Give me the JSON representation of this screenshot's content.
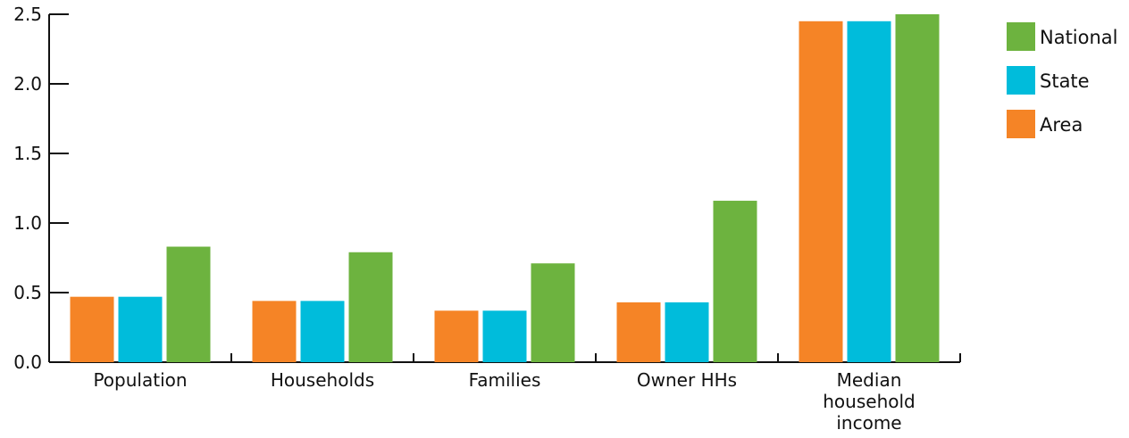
{
  "chart_data": {
    "type": "bar",
    "categories": [
      [
        "Population"
      ],
      [
        "Households"
      ],
      [
        "Families"
      ],
      [
        "Owner HHs"
      ],
      [
        "Median",
        "household",
        "income"
      ]
    ],
    "series": [
      {
        "name": "Area",
        "color": "#f58426",
        "values": [
          0.47,
          0.44,
          0.37,
          0.43,
          2.45
        ]
      },
      {
        "name": "State",
        "color": "#00bcdb",
        "values": [
          0.47,
          0.44,
          0.37,
          0.43,
          2.45
        ]
      },
      {
        "name": "National",
        "color": "#6db33f",
        "values": [
          0.83,
          0.79,
          0.71,
          1.16,
          2.5
        ]
      }
    ],
    "legend_order": [
      "National",
      "State",
      "Area"
    ],
    "legend_position": "top-right",
    "ylim": [
      0,
      2.5
    ],
    "yticks": [
      "0.0",
      "0.5",
      "1.0",
      "1.5",
      "2.0",
      "2.5"
    ],
    "grid": false,
    "title": "",
    "xlabel": "",
    "ylabel": ""
  }
}
